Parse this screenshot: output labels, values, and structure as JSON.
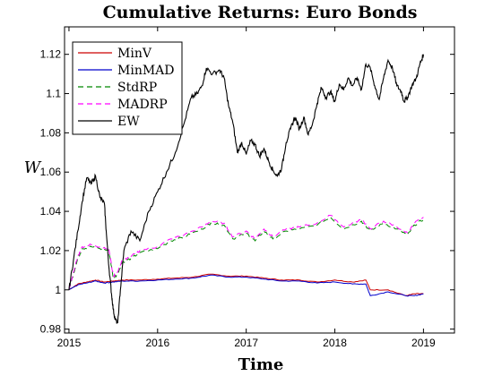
{
  "chart_data": {
    "type": "line",
    "title": "Cumulative Returns: Euro Bonds",
    "xlabel": "Time",
    "ylabel": "W",
    "xlim": [
      2014.95,
      2019.35
    ],
    "ylim": [
      0.978,
      1.134
    ],
    "x_ticks": [
      2015,
      2016,
      2017,
      2018,
      2019
    ],
    "x_tick_labels": [
      "2015",
      "2016",
      "2017",
      "2018",
      "2019"
    ],
    "y_ticks": [
      0.98,
      1.0,
      1.02,
      1.04,
      1.06,
      1.08,
      1.1,
      1.12
    ],
    "y_tick_labels": [
      "0.98",
      "1",
      "1.02",
      "1.04",
      "1.06",
      "1.08",
      "1.1",
      "1.12"
    ],
    "grid": false,
    "legend_position": "top-left",
    "series": [
      {
        "name": "MinV",
        "color": "#cc0000",
        "dash": "solid",
        "points": [
          [
            2015.0,
            1.0
          ],
          [
            2015.1,
            1.003
          ],
          [
            2015.2,
            1.004
          ],
          [
            2015.3,
            1.005
          ],
          [
            2015.4,
            1.004
          ],
          [
            2015.5,
            1.0045
          ],
          [
            2015.6,
            1.005
          ],
          [
            2015.8,
            1.005
          ],
          [
            2016.0,
            1.0055
          ],
          [
            2016.2,
            1.006
          ],
          [
            2016.4,
            1.0065
          ],
          [
            2016.6,
            1.008
          ],
          [
            2016.8,
            1.007
          ],
          [
            2017.0,
            1.007
          ],
          [
            2017.2,
            1.006
          ],
          [
            2017.4,
            1.005
          ],
          [
            2017.6,
            1.005
          ],
          [
            2017.8,
            1.004
          ],
          [
            2018.0,
            1.005
          ],
          [
            2018.2,
            1.004
          ],
          [
            2018.35,
            1.005
          ],
          [
            2018.4,
            1.0
          ],
          [
            2018.6,
            1.0
          ],
          [
            2018.8,
            0.997
          ],
          [
            2018.9,
            0.998
          ],
          [
            2019.0,
            0.998
          ]
        ]
      },
      {
        "name": "MinMAD",
        "color": "#0000cc",
        "dash": "solid",
        "points": [
          [
            2015.0,
            1.0
          ],
          [
            2015.1,
            1.0025
          ],
          [
            2015.2,
            1.0035
          ],
          [
            2015.3,
            1.0045
          ],
          [
            2015.4,
            1.0035
          ],
          [
            2015.5,
            1.004
          ],
          [
            2015.6,
            1.0045
          ],
          [
            2015.8,
            1.0045
          ],
          [
            2016.0,
            1.005
          ],
          [
            2016.2,
            1.0055
          ],
          [
            2016.4,
            1.006
          ],
          [
            2016.6,
            1.0075
          ],
          [
            2016.8,
            1.0065
          ],
          [
            2017.0,
            1.0065
          ],
          [
            2017.2,
            1.0055
          ],
          [
            2017.4,
            1.0045
          ],
          [
            2017.6,
            1.0045
          ],
          [
            2017.8,
            1.0035
          ],
          [
            2018.0,
            1.004
          ],
          [
            2018.2,
            1.003
          ],
          [
            2018.35,
            1.003
          ],
          [
            2018.4,
            0.997
          ],
          [
            2018.6,
            0.999
          ],
          [
            2018.8,
            0.997
          ],
          [
            2018.9,
            0.997
          ],
          [
            2019.0,
            0.998
          ]
        ]
      },
      {
        "name": "StdRP",
        "color": "#008800",
        "dash": "dashed",
        "points": [
          [
            2015.0,
            1.0
          ],
          [
            2015.05,
            1.008
          ],
          [
            2015.1,
            1.016
          ],
          [
            2015.15,
            1.021
          ],
          [
            2015.25,
            1.022
          ],
          [
            2015.35,
            1.021
          ],
          [
            2015.45,
            1.02
          ],
          [
            2015.5,
            1.006
          ],
          [
            2015.55,
            1.008
          ],
          [
            2015.6,
            1.014
          ],
          [
            2015.7,
            1.016
          ],
          [
            2015.8,
            1.019
          ],
          [
            2016.0,
            1.021
          ],
          [
            2016.15,
            1.025
          ],
          [
            2016.3,
            1.027
          ],
          [
            2016.5,
            1.031
          ],
          [
            2016.6,
            1.034
          ],
          [
            2016.75,
            1.033
          ],
          [
            2016.85,
            1.026
          ],
          [
            2017.0,
            1.029
          ],
          [
            2017.1,
            1.025
          ],
          [
            2017.2,
            1.03
          ],
          [
            2017.3,
            1.026
          ],
          [
            2017.45,
            1.03
          ],
          [
            2017.6,
            1.031
          ],
          [
            2017.8,
            1.033
          ],
          [
            2017.95,
            1.037
          ],
          [
            2018.1,
            1.031
          ],
          [
            2018.3,
            1.035
          ],
          [
            2018.4,
            1.03
          ],
          [
            2018.55,
            1.034
          ],
          [
            2018.7,
            1.031
          ],
          [
            2018.82,
            1.028
          ],
          [
            2018.9,
            1.033
          ],
          [
            2019.0,
            1.036
          ]
        ]
      },
      {
        "name": "MADRP",
        "color": "#ff00ff",
        "dash": "dashed",
        "points": [
          [
            2015.0,
            1.0
          ],
          [
            2015.05,
            1.009
          ],
          [
            2015.1,
            1.017
          ],
          [
            2015.15,
            1.022
          ],
          [
            2015.25,
            1.023
          ],
          [
            2015.35,
            1.022
          ],
          [
            2015.45,
            1.021
          ],
          [
            2015.5,
            1.007
          ],
          [
            2015.55,
            1.009
          ],
          [
            2015.6,
            1.015
          ],
          [
            2015.7,
            1.017
          ],
          [
            2015.8,
            1.02
          ],
          [
            2016.0,
            1.022
          ],
          [
            2016.15,
            1.026
          ],
          [
            2016.3,
            1.028
          ],
          [
            2016.5,
            1.032
          ],
          [
            2016.6,
            1.035
          ],
          [
            2016.75,
            1.034
          ],
          [
            2016.85,
            1.027
          ],
          [
            2017.0,
            1.03
          ],
          [
            2017.1,
            1.026
          ],
          [
            2017.2,
            1.031
          ],
          [
            2017.3,
            1.027
          ],
          [
            2017.45,
            1.031
          ],
          [
            2017.6,
            1.032
          ],
          [
            2017.8,
            1.034
          ],
          [
            2017.95,
            1.038
          ],
          [
            2018.1,
            1.032
          ],
          [
            2018.3,
            1.036
          ],
          [
            2018.4,
            1.031
          ],
          [
            2018.55,
            1.035
          ],
          [
            2018.7,
            1.032
          ],
          [
            2018.82,
            1.029
          ],
          [
            2018.9,
            1.034
          ],
          [
            2019.0,
            1.037
          ]
        ]
      },
      {
        "name": "EW",
        "color": "#000000",
        "dash": "solid",
        "points": [
          [
            2015.0,
            1.0
          ],
          [
            2015.05,
            1.015
          ],
          [
            2015.1,
            1.03
          ],
          [
            2015.15,
            1.045
          ],
          [
            2015.2,
            1.057
          ],
          [
            2015.25,
            1.054
          ],
          [
            2015.3,
            1.058
          ],
          [
            2015.35,
            1.047
          ],
          [
            2015.4,
            1.044
          ],
          [
            2015.42,
            1.03
          ],
          [
            2015.45,
            1.012
          ],
          [
            2015.48,
            0.998
          ],
          [
            2015.5,
            0.99
          ],
          [
            2015.52,
            0.985
          ],
          [
            2015.55,
            0.983
          ],
          [
            2015.58,
            1.0
          ],
          [
            2015.62,
            1.02
          ],
          [
            2015.7,
            1.03
          ],
          [
            2015.8,
            1.025
          ],
          [
            2015.9,
            1.04
          ],
          [
            2016.0,
            1.05
          ],
          [
            2016.1,
            1.06
          ],
          [
            2016.2,
            1.07
          ],
          [
            2016.3,
            1.085
          ],
          [
            2016.38,
            1.098
          ],
          [
            2016.45,
            1.1
          ],
          [
            2016.5,
            1.104
          ],
          [
            2016.55,
            1.113
          ],
          [
            2016.62,
            1.11
          ],
          [
            2016.7,
            1.112
          ],
          [
            2016.75,
            1.108
          ],
          [
            2016.8,
            1.094
          ],
          [
            2016.85,
            1.085
          ],
          [
            2016.9,
            1.07
          ],
          [
            2016.95,
            1.075
          ],
          [
            2017.0,
            1.069
          ],
          [
            2017.05,
            1.076
          ],
          [
            2017.1,
            1.074
          ],
          [
            2017.15,
            1.068
          ],
          [
            2017.2,
            1.072
          ],
          [
            2017.25,
            1.066
          ],
          [
            2017.3,
            1.061
          ],
          [
            2017.35,
            1.058
          ],
          [
            2017.4,
            1.062
          ],
          [
            2017.45,
            1.075
          ],
          [
            2017.5,
            1.082
          ],
          [
            2017.55,
            1.088
          ],
          [
            2017.6,
            1.082
          ],
          [
            2017.65,
            1.088
          ],
          [
            2017.7,
            1.079
          ],
          [
            2017.75,
            1.085
          ],
          [
            2017.8,
            1.095
          ],
          [
            2017.85,
            1.103
          ],
          [
            2017.9,
            1.098
          ],
          [
            2017.95,
            1.101
          ],
          [
            2018.0,
            1.096
          ],
          [
            2018.05,
            1.105
          ],
          [
            2018.1,
            1.102
          ],
          [
            2018.15,
            1.108
          ],
          [
            2018.2,
            1.104
          ],
          [
            2018.25,
            1.108
          ],
          [
            2018.3,
            1.102
          ],
          [
            2018.35,
            1.115
          ],
          [
            2018.4,
            1.113
          ],
          [
            2018.45,
            1.104
          ],
          [
            2018.5,
            1.097
          ],
          [
            2018.55,
            1.108
          ],
          [
            2018.6,
            1.117
          ],
          [
            2018.65,
            1.113
          ],
          [
            2018.7,
            1.104
          ],
          [
            2018.75,
            1.101
          ],
          [
            2018.78,
            1.096
          ],
          [
            2018.82,
            1.098
          ],
          [
            2018.87,
            1.104
          ],
          [
            2018.92,
            1.108
          ],
          [
            2018.96,
            1.115
          ],
          [
            2019.0,
            1.12
          ]
        ]
      }
    ]
  }
}
